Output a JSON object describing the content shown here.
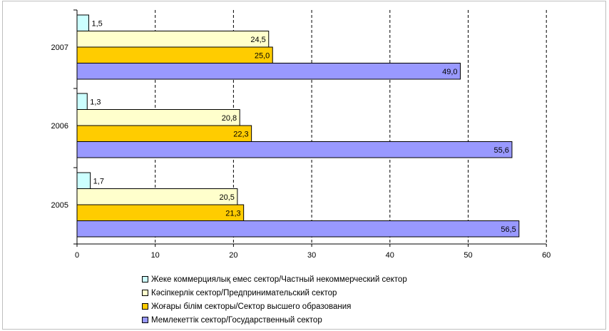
{
  "chart_data": {
    "type": "bar",
    "orientation": "horizontal",
    "categories": [
      "2007",
      "2006",
      "2005"
    ],
    "series": [
      {
        "name": "Жеке коммерциялық емес сектор/Частный некоммерческий сектор",
        "values": [
          1.5,
          1.3,
          1.7
        ],
        "labels": [
          "1,5",
          "1,3",
          "1,7"
        ],
        "color": "#ccffff"
      },
      {
        "name": "Кәсіпкерлік сектор/Предпринимательский сектор",
        "values": [
          24.5,
          20.8,
          20.5
        ],
        "labels": [
          "24,5",
          "20,8",
          "20,5"
        ],
        "color": "#ffffcc"
      },
      {
        "name": "Жоғары білім секторы/Сектор высшего образования",
        "values": [
          25.0,
          22.3,
          21.3
        ],
        "labels": [
          "25,0",
          "22,3",
          "21,3"
        ],
        "color": "#ffcc00"
      },
      {
        "name": "Мемлекеттік сектор/Государственный сектор",
        "values": [
          49.0,
          55.6,
          56.5
        ],
        "labels": [
          "49,0",
          "55,6",
          "56,5"
        ],
        "color": "#9999ff"
      }
    ],
    "xlim": [
      0,
      60
    ],
    "xticks": [
      "0",
      "10",
      "20",
      "30",
      "40",
      "50",
      "60"
    ],
    "grid": "vertical dashed",
    "legend": "bottom"
  }
}
